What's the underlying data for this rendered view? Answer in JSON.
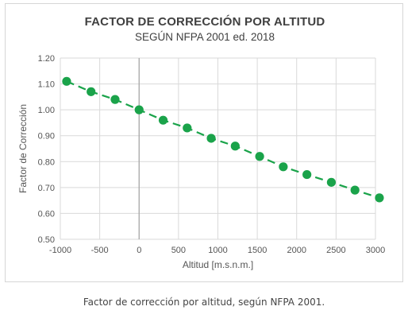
{
  "caption": "Factor de corrección por altitud, según NFPA 2001.",
  "colors": {
    "series": "#1aa34a",
    "grid": "#d9d9d9",
    "zero_line": "#a6a6a6"
  },
  "chart_data": {
    "type": "line",
    "title": "FACTOR DE CORRECCIÓN POR ALTITUD",
    "subtitle": "SEGÚN NFPA 2001 ed. 2018",
    "xlabel": "Altitud [m.s.n.m.]",
    "ylabel": "Factor de Corrección",
    "xlim": [
      -1000,
      3000
    ],
    "ylim": [
      0.5,
      1.2
    ],
    "x_ticks": [
      -1000,
      -500,
      0,
      500,
      1000,
      1500,
      2000,
      2500,
      3000
    ],
    "x_tick_labels": [
      "-1000",
      "-500",
      "0",
      "500",
      "1000",
      "1500",
      "2000",
      "2500",
      "3000"
    ],
    "y_ticks": [
      0.5,
      0.6,
      0.7,
      0.8,
      0.9,
      1.0,
      1.1,
      1.2
    ],
    "y_tick_labels": [
      "0.50",
      "0.60",
      "0.70",
      "0.80",
      "0.90",
      "1.00",
      "1.10",
      "1.20"
    ],
    "grid": true,
    "series": [
      {
        "x": [
          -920,
          -610,
          -305,
          0,
          305,
          610,
          915,
          1220,
          1530,
          1830,
          2130,
          2440,
          2740,
          3050
        ],
        "values": [
          1.11,
          1.07,
          1.04,
          1.0,
          0.96,
          0.93,
          0.89,
          0.86,
          0.82,
          0.78,
          0.75,
          0.72,
          0.69,
          0.66
        ],
        "style": "markers-with-dashed-line"
      }
    ]
  }
}
